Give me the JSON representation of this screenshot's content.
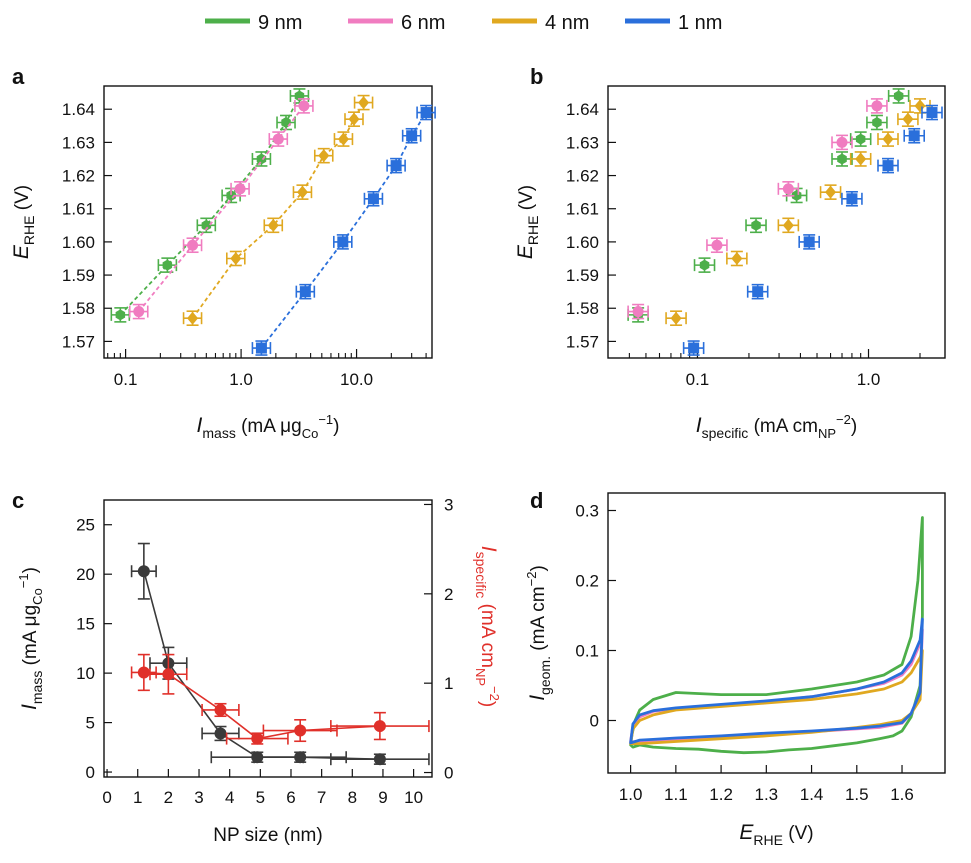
{
  "legend": [
    {
      "label": "9 nm",
      "color": "#4daf4a"
    },
    {
      "label": "6 nm",
      "color": "#f07cc0"
    },
    {
      "label": "4 nm",
      "color": "#e0a820"
    },
    {
      "label": "1 nm",
      "color": "#2a6fdb"
    }
  ],
  "chart_data": [
    {
      "panel": "a",
      "type": "scatter",
      "x_scale": "log",
      "xlabel": {
        "main": "I",
        "sub": "mass",
        "unit_pre": " (mA μg",
        "unit_sub": "Co",
        "unit_sup": "−1",
        "unit_post": ")"
      },
      "ylabel": {
        "main": "E",
        "sub": "RHE",
        "unit": " (V)"
      },
      "xlim": [
        0.065,
        45
      ],
      "ylim": [
        1.565,
        1.647
      ],
      "xticks": [
        0.1,
        1,
        10
      ],
      "xtick_labels": [
        "0.1",
        "1.0",
        "10.0"
      ],
      "yticks": [
        1.57,
        1.58,
        1.59,
        1.6,
        1.61,
        1.62,
        1.63,
        1.64
      ],
      "ytick_labels": [
        "1.57",
        "1.58",
        "1.59",
        "1.60",
        "1.61",
        "1.62",
        "1.63",
        "1.64"
      ],
      "series": [
        {
          "name": "9 nm",
          "color": "#4daf4a",
          "marker": "hex",
          "x": [
            0.09,
            0.23,
            0.5,
            0.82,
            1.5,
            2.45,
            3.2
          ],
          "y": [
            1.578,
            1.593,
            1.605,
            1.614,
            1.625,
            1.636,
            1.644
          ]
        },
        {
          "name": "6 nm",
          "color": "#f07cc0",
          "marker": "circle",
          "x": [
            0.13,
            0.38,
            0.98,
            2.1,
            3.5
          ],
          "y": [
            1.579,
            1.599,
            1.616,
            1.631,
            1.641
          ]
        },
        {
          "name": "4 nm",
          "color": "#e0a820",
          "marker": "diamond",
          "x": [
            0.38,
            0.9,
            1.9,
            3.4,
            5.2,
            7.7,
            9.5,
            11.5
          ],
          "y": [
            1.577,
            1.595,
            1.605,
            1.615,
            1.626,
            1.631,
            1.637,
            1.642
          ]
        },
        {
          "name": "1 nm",
          "color": "#2a6fdb",
          "marker": "square",
          "x": [
            1.5,
            3.6,
            7.6,
            14,
            22,
            30,
            40
          ],
          "y": [
            1.568,
            1.585,
            1.6,
            1.613,
            1.623,
            1.632,
            1.639
          ]
        }
      ]
    },
    {
      "panel": "b",
      "type": "scatter",
      "x_scale": "log",
      "xlabel": {
        "main": "I",
        "sub": "specific",
        "unit_pre": " (mA cm",
        "unit_sub": "NP",
        "unit_sup": "−2",
        "unit_post": ")"
      },
      "ylabel": {
        "main": "E",
        "sub": "RHE",
        "unit": " (V)"
      },
      "xlim": [
        0.03,
        2.8
      ],
      "ylim": [
        1.565,
        1.647
      ],
      "xticks": [
        0.1,
        1
      ],
      "xtick_labels": [
        "0.1",
        "1.0"
      ],
      "yticks": [
        1.57,
        1.58,
        1.59,
        1.6,
        1.61,
        1.62,
        1.63,
        1.64
      ],
      "ytick_labels": [
        "1.57",
        "1.58",
        "1.59",
        "1.60",
        "1.61",
        "1.62",
        "1.63",
        "1.64"
      ],
      "series": [
        {
          "name": "9 nm",
          "color": "#4daf4a",
          "marker": "hex",
          "x": [
            0.045,
            0.11,
            0.22,
            0.38,
            0.7,
            0.9,
            1.12,
            1.5
          ],
          "y": [
            1.578,
            1.593,
            1.605,
            1.614,
            1.625,
            1.631,
            1.636,
            1.644
          ]
        },
        {
          "name": "6 nm",
          "color": "#f07cc0",
          "marker": "circle",
          "x": [
            0.045,
            0.13,
            0.34,
            0.7,
            1.12
          ],
          "y": [
            1.579,
            1.599,
            1.616,
            1.63,
            1.641
          ]
        },
        {
          "name": "4 nm",
          "color": "#e0a820",
          "marker": "diamond",
          "x": [
            0.075,
            0.17,
            0.34,
            0.6,
            0.9,
            1.3,
            1.7,
            2.0
          ],
          "y": [
            1.577,
            1.595,
            1.605,
            1.615,
            1.625,
            1.631,
            1.637,
            1.641
          ]
        },
        {
          "name": "1 nm",
          "color": "#2a6fdb",
          "marker": "square",
          "x": [
            0.095,
            0.225,
            0.45,
            0.8,
            1.3,
            1.85,
            2.35
          ],
          "y": [
            1.568,
            1.585,
            1.6,
            1.613,
            1.623,
            1.632,
            1.639
          ]
        }
      ]
    },
    {
      "panel": "c",
      "type": "line",
      "xlabel": "NP size (nm)",
      "ylabel": {
        "main": "I",
        "sub": "mass",
        "unit_pre": " (mA μg",
        "unit_sub": "Co",
        "unit_sup": "−1",
        "unit_post": ")"
      },
      "y2label": {
        "main": "I",
        "sub": "specific",
        "unit_pre": " (mA cm",
        "unit_sub": "NP",
        "unit_sup": "−2",
        "unit_post": ")"
      },
      "xlim": [
        -0.1,
        10.6
      ],
      "ylim": [
        -0.5,
        27.5
      ],
      "y2lim": [
        -0.05,
        3.05
      ],
      "xticks": [
        0,
        1,
        2,
        3,
        4,
        5,
        6,
        7,
        8,
        9,
        10
      ],
      "xtick_labels": [
        "0",
        "1",
        "2",
        "3",
        "4",
        "5",
        "6",
        "7",
        "8",
        "9",
        "10"
      ],
      "yticks": [
        0,
        5,
        10,
        15,
        20,
        25
      ],
      "ytick_labels": [
        "0",
        "5",
        "10",
        "15",
        "20",
        "25"
      ],
      "y2ticks": [
        0,
        1,
        2,
        3
      ],
      "y2tick_labels": [
        "0",
        "1",
        "2",
        "3"
      ],
      "series": [
        {
          "name": "I_mass",
          "axis": "left",
          "color": "#3a3a3a",
          "x": [
            1.2,
            2.0,
            3.7,
            4.9,
            6.3,
            8.9
          ],
          "y": [
            20.3,
            11.0,
            3.9,
            1.5,
            1.5,
            1.3
          ],
          "xerr": [
            0.4,
            0.6,
            0.6,
            1.5,
            1.5,
            1.6
          ],
          "yerr": [
            2.8,
            1.6,
            0.7,
            0.5,
            0.5,
            0.5
          ]
        },
        {
          "name": "I_specific",
          "axis": "right",
          "color": "#e0302a",
          "x": [
            1.2,
            2.0,
            3.7,
            4.9,
            6.3,
            8.9
          ],
          "y": [
            1.12,
            1.1,
            0.7,
            0.38,
            0.47,
            0.52
          ],
          "xerr": [
            0.4,
            0.6,
            0.6,
            1.0,
            1.2,
            1.6
          ],
          "yerr": [
            0.2,
            0.22,
            0.07,
            0.06,
            0.12,
            0.15
          ]
        }
      ]
    },
    {
      "panel": "d",
      "type": "line",
      "xlabel": {
        "main": "E",
        "sub": "RHE",
        "unit": " (V)"
      },
      "ylabel": {
        "main": "I",
        "sub": "geom.",
        "unit_pre": " (mA cm",
        "unit_sub": "",
        "unit_sup": "−2",
        "unit_post": ")"
      },
      "xlim": [
        0.95,
        1.695
      ],
      "ylim": [
        -0.075,
        0.325
      ],
      "xticks": [
        1.0,
        1.1,
        1.2,
        1.3,
        1.4,
        1.5,
        1.6
      ],
      "xtick_labels": [
        "1.0",
        "1.1",
        "1.2",
        "1.3",
        "1.4",
        "1.5",
        "1.6"
      ],
      "yticks": [
        0,
        0.1,
        0.2,
        0.3
      ],
      "ytick_labels": [
        "0",
        "0.1",
        "0.2",
        "0.3"
      ],
      "series": [
        {
          "name": "9 nm",
          "color": "#4daf4a",
          "x": [
            1.0,
            1.003,
            1.01,
            1.02,
            1.05,
            1.1,
            1.2,
            1.3,
            1.4,
            1.5,
            1.56,
            1.6,
            1.62,
            1.635,
            1.645,
            1.645,
            1.64,
            1.62,
            1.6,
            1.58,
            1.55,
            1.5,
            1.45,
            1.4,
            1.35,
            1.3,
            1.25,
            1.2,
            1.15,
            1.1,
            1.05,
            1.02,
            1.005,
            1.0
          ],
          "y": [
            -0.035,
            -0.02,
            0.0,
            0.015,
            0.03,
            0.04,
            0.037,
            0.037,
            0.045,
            0.055,
            0.065,
            0.08,
            0.12,
            0.2,
            0.29,
            0.15,
            0.05,
            0.005,
            -0.015,
            -0.022,
            -0.026,
            -0.032,
            -0.036,
            -0.04,
            -0.042,
            -0.045,
            -0.046,
            -0.044,
            -0.041,
            -0.04,
            -0.038,
            -0.035,
            -0.038,
            -0.035
          ]
        },
        {
          "name": "6 nm",
          "color": "#f07cc0",
          "x": [
            1.0,
            1.005,
            1.02,
            1.05,
            1.1,
            1.2,
            1.3,
            1.4,
            1.5,
            1.56,
            1.6,
            1.62,
            1.64,
            1.645,
            1.64,
            1.62,
            1.6,
            1.55,
            1.5,
            1.4,
            1.3,
            1.2,
            1.1,
            1.05,
            1.02,
            1.0
          ],
          "y": [
            -0.03,
            -0.008,
            0.005,
            0.013,
            0.017,
            0.022,
            0.027,
            0.034,
            0.045,
            0.053,
            0.065,
            0.08,
            0.11,
            0.13,
            0.04,
            0.01,
            -0.004,
            -0.01,
            -0.012,
            -0.016,
            -0.02,
            -0.024,
            -0.028,
            -0.03,
            -0.031,
            -0.03
          ]
        },
        {
          "name": "4 nm",
          "color": "#e0a820",
          "x": [
            1.0,
            1.005,
            1.02,
            1.05,
            1.1,
            1.2,
            1.3,
            1.4,
            1.5,
            1.56,
            1.6,
            1.62,
            1.64,
            1.645,
            1.64,
            1.62,
            1.6,
            1.55,
            1.5,
            1.4,
            1.3,
            1.2,
            1.1,
            1.05,
            1.02,
            1.0
          ],
          "y": [
            -0.033,
            -0.012,
            0.0,
            0.008,
            0.015,
            0.02,
            0.025,
            0.03,
            0.038,
            0.045,
            0.055,
            0.068,
            0.09,
            0.1,
            0.03,
            0.01,
            0.0,
            -0.006,
            -0.01,
            -0.017,
            -0.022,
            -0.026,
            -0.03,
            -0.032,
            -0.033,
            -0.033
          ]
        },
        {
          "name": "1 nm",
          "color": "#2a6fdb",
          "x": [
            1.0,
            1.005,
            1.02,
            1.05,
            1.1,
            1.2,
            1.3,
            1.4,
            1.5,
            1.56,
            1.6,
            1.62,
            1.64,
            1.645,
            1.64,
            1.62,
            1.6,
            1.55,
            1.5,
            1.4,
            1.3,
            1.2,
            1.1,
            1.05,
            1.02,
            1.0
          ],
          "y": [
            -0.032,
            -0.005,
            0.008,
            0.014,
            0.018,
            0.023,
            0.028,
            0.034,
            0.045,
            0.055,
            0.068,
            0.085,
            0.115,
            0.145,
            0.04,
            0.01,
            -0.003,
            -0.008,
            -0.011,
            -0.015,
            -0.018,
            -0.022,
            -0.025,
            -0.027,
            -0.028,
            -0.032
          ]
        }
      ]
    }
  ]
}
